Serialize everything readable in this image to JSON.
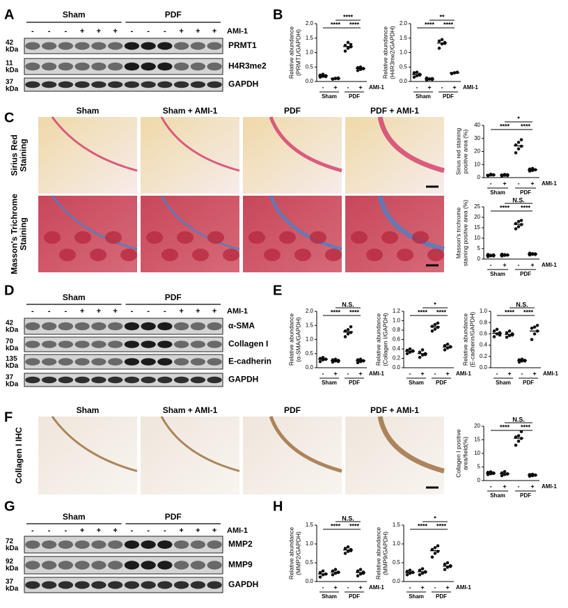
{
  "panel_letters": [
    "A",
    "B",
    "C",
    "D",
    "E",
    "F",
    "G",
    "H"
  ],
  "blots": [
    {
      "groups": [
        "Sham",
        "PDF"
      ],
      "lanes": [
        "-",
        "-",
        "-",
        "+",
        "+",
        "+",
        "-",
        "-",
        "-",
        "+",
        "+",
        "+"
      ],
      "treatment_label": "AMI-1",
      "rows": [
        {
          "size": "42",
          "unit": "kDa",
          "name": "PRMT1"
        },
        {
          "size": "11",
          "unit": "kDa",
          "name": "H4R3me2"
        },
        {
          "size": "37",
          "unit": "kDa",
          "name": "GAPDH"
        }
      ]
    },
    {
      "groups": [
        "Sham",
        "PDF"
      ],
      "lanes": [
        "-",
        "-",
        "-",
        "+",
        "+",
        "+",
        "-",
        "-",
        "-",
        "+",
        "+",
        "+"
      ],
      "treatment_label": "AMI-1",
      "rows": [
        {
          "size": "42",
          "unit": "kDa",
          "name": "α-SMA"
        },
        {
          "size": "70",
          "unit": "kDa",
          "name": "Collagen I"
        },
        {
          "size": "135",
          "unit": "kDa",
          "name": "E-cadherin"
        },
        {
          "size": "37",
          "unit": "kDa",
          "name": "GAPDH"
        }
      ]
    },
    {
      "groups": [
        "Sham",
        "PDF"
      ],
      "lanes": [
        "-",
        "-",
        "-",
        "+",
        "+",
        "+",
        "-",
        "-",
        "-",
        "+",
        "+",
        "+"
      ],
      "treatment_label": "AMI-1",
      "rows": [
        {
          "size": "72",
          "unit": "kDa",
          "name": "MMP2"
        },
        {
          "size": "92",
          "unit": "kDa",
          "name": "MMP9"
        },
        {
          "size": "37",
          "unit": "kDa",
          "name": "GAPDH"
        }
      ]
    }
  ],
  "histology": [
    {
      "columns": [
        "Sham",
        "Sham + AMI-1",
        "PDF",
        "PDF + AMI-1"
      ],
      "rows": [
        [
          "Sirius Red",
          "Staining"
        ],
        [
          "Masson's Trichrome",
          "Staining"
        ]
      ]
    },
    {
      "columns": [
        "Sham",
        "Sham + AMI-1",
        "PDF",
        "PDF + AMI-1"
      ],
      "rows": [
        [
          "Collagen I IHC"
        ]
      ]
    }
  ],
  "chart_data": [
    {
      "type": "dot",
      "ylabel": [
        "Relative abundance",
        "(PRMT1/GAPDH)"
      ],
      "categories": [
        "-",
        "+",
        "-",
        "+"
      ],
      "groups": [
        "Sham",
        "PDF"
      ],
      "treatment_label": "AMI-1",
      "ylim": [
        0,
        2
      ],
      "yticks": [
        {
          "value": 0,
          "label": "0.0"
        },
        {
          "value": 0.5,
          "label": "0.5"
        },
        {
          "value": 1,
          "label": "1.0"
        },
        {
          "value": 1.5,
          "label": "1.5"
        },
        {
          "value": 2,
          "label": "2.0"
        }
      ],
      "points": [
        [
          0.15,
          0.18,
          0.2,
          0.22,
          0.25,
          0.17
        ],
        [
          0.08,
          0.1,
          0.12,
          0.09,
          0.11,
          0.1
        ],
        [
          1.05,
          1.15,
          1.2,
          1.25,
          1.35,
          1.28
        ],
        [
          0.38,
          0.42,
          0.45,
          0.48,
          0.5,
          0.44
        ]
      ],
      "means": [
        0.2,
        0.1,
        1.21,
        0.45
      ],
      "significance": [
        "****",
        "****",
        "****"
      ]
    },
    {
      "type": "dot",
      "ylabel": [
        "Relative abundance",
        "(H4R3me2/GAPDH)"
      ],
      "categories": [
        "-",
        "+",
        "-",
        "+"
      ],
      "groups": [
        "Sham",
        "PDF"
      ],
      "treatment_label": "AMI-1",
      "ylim": [
        0,
        2
      ],
      "yticks": [
        {
          "value": 0,
          "label": "0.0"
        },
        {
          "value": 0.5,
          "label": "0.5"
        },
        {
          "value": 1,
          "label": "1.0"
        },
        {
          "value": 1.5,
          "label": "1.5"
        },
        {
          "value": 2,
          "label": "2.0"
        }
      ],
      "points": [
        [
          0.15,
          0.2,
          0.25,
          0.3,
          0.32,
          0.22
        ],
        [
          0.05,
          0.08,
          0.1,
          0.12,
          0.09,
          0.07
        ],
        [
          1.15,
          1.3,
          1.35,
          1.4,
          1.45,
          1.32
        ],
        [
          0.27,
          0.3,
          0.32,
          0.28,
          0.3,
          0.31
        ]
      ],
      "means": [
        0.24,
        0.09,
        1.33,
        0.3
      ],
      "significance": [
        "****",
        "****",
        "**"
      ]
    },
    {
      "type": "dot",
      "ylabel": [
        "Sirius red staining",
        "positive area (%)"
      ],
      "categories": [
        "-",
        "+",
        "-",
        "+"
      ],
      "groups": [
        "Sham",
        "PDF"
      ],
      "treatment_label": "AMI-1",
      "ylim": [
        0,
        40
      ],
      "yticks": [
        0,
        10,
        20,
        30,
        40
      ],
      "points": [
        [
          1.5,
          2,
          2.2,
          1.8,
          2.5,
          2
        ],
        [
          1.2,
          1.8,
          2.2,
          2,
          2.4,
          1.6
        ],
        [
          19,
          22,
          24,
          25,
          27,
          29
        ],
        [
          5,
          5.5,
          6,
          6.5,
          7,
          6
        ]
      ],
      "means": [
        2,
        1.9,
        24.3,
        6
      ],
      "significance": [
        "****",
        "****",
        "*"
      ]
    },
    {
      "type": "dot",
      "ylabel": [
        "Masson's trichrome",
        "staining positive area (%)"
      ],
      "categories": [
        "-",
        "+",
        "-",
        "+"
      ],
      "groups": [
        "Sham",
        "PDF"
      ],
      "treatment_label": "AMI-1",
      "ylim": [
        0,
        25
      ],
      "yticks": [
        0,
        5,
        10,
        15,
        20,
        25
      ],
      "points": [
        [
          1.2,
          1.6,
          2,
          2.2,
          1.8,
          1.5
        ],
        [
          1.5,
          1.8,
          2,
          2.3,
          2.1,
          1.9
        ],
        [
          14.5,
          15.5,
          16.5,
          17,
          18,
          18.5
        ],
        [
          2,
          2.3,
          2.5,
          2.8,
          2.6,
          2.2
        ]
      ],
      "means": [
        1.7,
        1.9,
        16.7,
        2.4
      ],
      "significance": [
        "****",
        "****",
        "N.S."
      ]
    },
    {
      "type": "dot",
      "ylabel": [
        "Relative abundance",
        "(α-SMA/GAPDH)"
      ],
      "categories": [
        "-",
        "+",
        "-",
        "+"
      ],
      "groups": [
        "Sham",
        "PDF"
      ],
      "treatment_label": "AMI-1",
      "ylim": [
        0,
        2
      ],
      "yticks": [
        {
          "value": 0,
          "label": "0.0"
        },
        {
          "value": 0.5,
          "label": "0.5"
        },
        {
          "value": 1,
          "label": "1.0"
        },
        {
          "value": 1.5,
          "label": "1.5"
        },
        {
          "value": 2,
          "label": "2.0"
        }
      ],
      "points": [
        [
          0.22,
          0.28,
          0.3,
          0.33,
          0.36,
          0.3
        ],
        [
          0.2,
          0.24,
          0.26,
          0.28,
          0.3,
          0.22
        ],
        [
          1.1,
          1.2,
          1.25,
          1.3,
          1.35,
          1.45
        ],
        [
          0.18,
          0.22,
          0.25,
          0.28,
          0.3,
          0.24
        ]
      ],
      "means": [
        0.3,
        0.25,
        1.27,
        0.25
      ],
      "significance": [
        "****",
        "****",
        "N.S."
      ]
    },
    {
      "type": "dot",
      "ylabel": [
        "Relative abundance",
        "(Collagen I/GAPDH)"
      ],
      "categories": [
        "-",
        "+",
        "-",
        "+"
      ],
      "groups": [
        "Sham",
        "PDF"
      ],
      "treatment_label": "AMI-1",
      "ylim": [
        0,
        1.2
      ],
      "yticks": [
        {
          "value": 0,
          "label": "0.0"
        },
        {
          "value": 0.2,
          "label": "0.2"
        },
        {
          "value": 0.4,
          "label": "0.4"
        },
        {
          "value": 0.6,
          "label": "0.6"
        },
        {
          "value": 0.8,
          "label": "0.8"
        },
        {
          "value": 1,
          "label": "1.0"
        },
        {
          "value": 1.2,
          "label": "1.2"
        }
      ],
      "points": [
        [
          0.3,
          0.33,
          0.35,
          0.37,
          0.4,
          0.36
        ],
        [
          0.22,
          0.27,
          0.3,
          0.33,
          0.38,
          0.28
        ],
        [
          0.78,
          0.82,
          0.86,
          0.88,
          0.92,
          0.95
        ],
        [
          0.38,
          0.42,
          0.45,
          0.47,
          0.5,
          0.44
        ]
      ],
      "means": [
        0.35,
        0.3,
        0.87,
        0.44
      ],
      "significance": [
        "****",
        "****",
        "*"
      ]
    },
    {
      "type": "dot",
      "ylabel": [
        "Relative abundance",
        "(E-cadherin/GAPDH)"
      ],
      "categories": [
        "-",
        "+",
        "-",
        "+"
      ],
      "groups": [
        "Sham",
        "PDF"
      ],
      "treatment_label": "AMI-1",
      "ylim": [
        0,
        1
      ],
      "yticks": [
        {
          "value": 0,
          "label": "0.0"
        },
        {
          "value": 0.2,
          "label": "0.2"
        },
        {
          "value": 0.4,
          "label": "0.4"
        },
        {
          "value": 0.6,
          "label": "0.6"
        },
        {
          "value": 0.8,
          "label": "0.8"
        },
        {
          "value": 1,
          "label": "1.0"
        }
      ],
      "points": [
        [
          0.55,
          0.6,
          0.62,
          0.65,
          0.68,
          0.58
        ],
        [
          0.54,
          0.57,
          0.6,
          0.62,
          0.65,
          0.58
        ],
        [
          0.1,
          0.12,
          0.13,
          0.14,
          0.15,
          0.12
        ],
        [
          0.5,
          0.6,
          0.65,
          0.7,
          0.72,
          0.75
        ]
      ],
      "means": [
        0.61,
        0.59,
        0.13,
        0.65
      ],
      "significance": [
        "****",
        "****",
        "N.S."
      ]
    },
    {
      "type": "dot",
      "ylabel": [
        "Collagen I positive",
        "area/field(%)"
      ],
      "categories": [
        "-",
        "+",
        "-",
        "+"
      ],
      "groups": [
        "Sham",
        "PDF"
      ],
      "treatment_label": "AMI-1",
      "ylim": [
        0,
        20
      ],
      "yticks": [
        0,
        5,
        10,
        15,
        20
      ],
      "points": [
        [
          2.2,
          2.5,
          2.8,
          3,
          3.2,
          2.6
        ],
        [
          1.8,
          2.2,
          2.5,
          2.8,
          3.3,
          2.4
        ],
        [
          13,
          14.5,
          15.5,
          16,
          16.5,
          18
        ],
        [
          1.6,
          1.8,
          2,
          2.2,
          2.3,
          2
        ]
      ],
      "means": [
        2.7,
        2.5,
        15.6,
        2
      ],
      "significance": [
        "****",
        "****",
        "N.S."
      ]
    },
    {
      "type": "dot",
      "ylabel": [
        "Relative abundance",
        "(MMP2/GAPDH)"
      ],
      "categories": [
        "-",
        "+",
        "-",
        "+"
      ],
      "groups": [
        "Sham",
        "PDF"
      ],
      "treatment_label": "AMI-1",
      "ylim": [
        0,
        1.5
      ],
      "yticks": [
        {
          "value": 0,
          "label": "0.0"
        },
        {
          "value": 0.5,
          "label": "0.5"
        },
        {
          "value": 1,
          "label": "1.0"
        },
        {
          "value": 1.5,
          "label": "1.5"
        }
      ],
      "points": [
        [
          0.12,
          0.18,
          0.2,
          0.24,
          0.28,
          0.2
        ],
        [
          0.18,
          0.22,
          0.25,
          0.28,
          0.32,
          0.24
        ],
        [
          0.75,
          0.8,
          0.85,
          0.88,
          0.92,
          0.82
        ],
        [
          0.15,
          0.2,
          0.25,
          0.28,
          0.32,
          0.22
        ]
      ],
      "means": [
        0.2,
        0.25,
        0.84,
        0.24
      ],
      "significance": [
        "****",
        "****",
        "N.S."
      ]
    },
    {
      "type": "dot",
      "ylabel": [
        "Relative abundance",
        "(MMP9/GAPDH)"
      ],
      "categories": [
        "-",
        "+",
        "-",
        "+"
      ],
      "groups": [
        "Sham",
        "PDF"
      ],
      "treatment_label": "AMI-1",
      "ylim": [
        0,
        1.5
      ],
      "yticks": [
        {
          "value": 0,
          "label": "0.0"
        },
        {
          "value": 0.5,
          "label": "0.5"
        },
        {
          "value": 1,
          "label": "1.0"
        },
        {
          "value": 1.5,
          "label": "1.5"
        }
      ],
      "points": [
        [
          0.18,
          0.22,
          0.25,
          0.27,
          0.3,
          0.24
        ],
        [
          0.18,
          0.22,
          0.26,
          0.3,
          0.34,
          0.25
        ],
        [
          0.65,
          0.75,
          0.8,
          0.85,
          0.9,
          0.95
        ],
        [
          0.32,
          0.38,
          0.42,
          0.46,
          0.5,
          0.4
        ]
      ],
      "means": [
        0.24,
        0.26,
        0.82,
        0.41
      ],
      "significance": [
        "****",
        "****",
        "*"
      ]
    }
  ]
}
